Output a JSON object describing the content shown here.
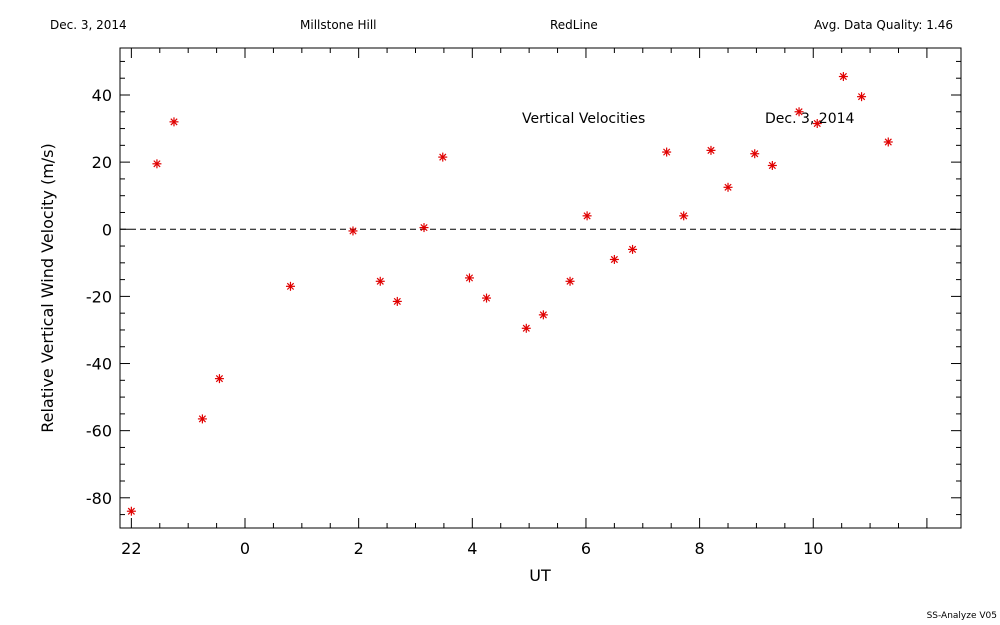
{
  "header": {
    "date": "Dec. 3, 2014",
    "site": "Millstone Hill",
    "instrument": "RedLine",
    "quality": "Avg. Data Quality: 1.46"
  },
  "footer": "SS-Analyze V05",
  "chart_data": {
    "type": "scatter",
    "title": "Vertical Velocities",
    "annotation": "Dec. 3, 2014",
    "xlabel": "UT",
    "ylabel": "Relative Vertical Wind Velocity (m/s)",
    "xlim": [
      -2.2,
      12.6
    ],
    "ylim": [
      -89,
      54
    ],
    "x_ticks": [
      22,
      0,
      2,
      4,
      6,
      8,
      10
    ],
    "y_ticks": [
      -80,
      -60,
      -40,
      -20,
      0,
      20,
      40
    ],
    "zero_line": "dashed",
    "marker": "asterisk",
    "marker_color": "#e00000",
    "points": [
      {
        "x": -2.0,
        "y": -84
      },
      {
        "x": -1.55,
        "y": 19.5
      },
      {
        "x": -1.25,
        "y": 32
      },
      {
        "x": -0.75,
        "y": -56.5
      },
      {
        "x": -0.45,
        "y": -44.5
      },
      {
        "x": 0.8,
        "y": -17
      },
      {
        "x": 1.9,
        "y": -0.5
      },
      {
        "x": 2.38,
        "y": -15.5
      },
      {
        "x": 2.68,
        "y": -21.5
      },
      {
        "x": 3.15,
        "y": 0.5
      },
      {
        "x": 3.48,
        "y": 21.5
      },
      {
        "x": 3.95,
        "y": -14.5
      },
      {
        "x": 4.25,
        "y": -20.5
      },
      {
        "x": 4.95,
        "y": -29.5
      },
      {
        "x": 5.25,
        "y": -25.5
      },
      {
        "x": 5.72,
        "y": -15.5
      },
      {
        "x": 6.02,
        "y": 4
      },
      {
        "x": 6.5,
        "y": -9
      },
      {
        "x": 6.82,
        "y": -6
      },
      {
        "x": 7.42,
        "y": 23
      },
      {
        "x": 7.72,
        "y": 4
      },
      {
        "x": 8.2,
        "y": 23.5
      },
      {
        "x": 8.5,
        "y": 12.5
      },
      {
        "x": 8.97,
        "y": 22.5
      },
      {
        "x": 9.28,
        "y": 19
      },
      {
        "x": 9.75,
        "y": 35
      },
      {
        "x": 10.07,
        "y": 31.5
      },
      {
        "x": 10.53,
        "y": 45.5
      },
      {
        "x": 10.85,
        "y": 39.5
      },
      {
        "x": 11.32,
        "y": 26
      }
    ]
  }
}
